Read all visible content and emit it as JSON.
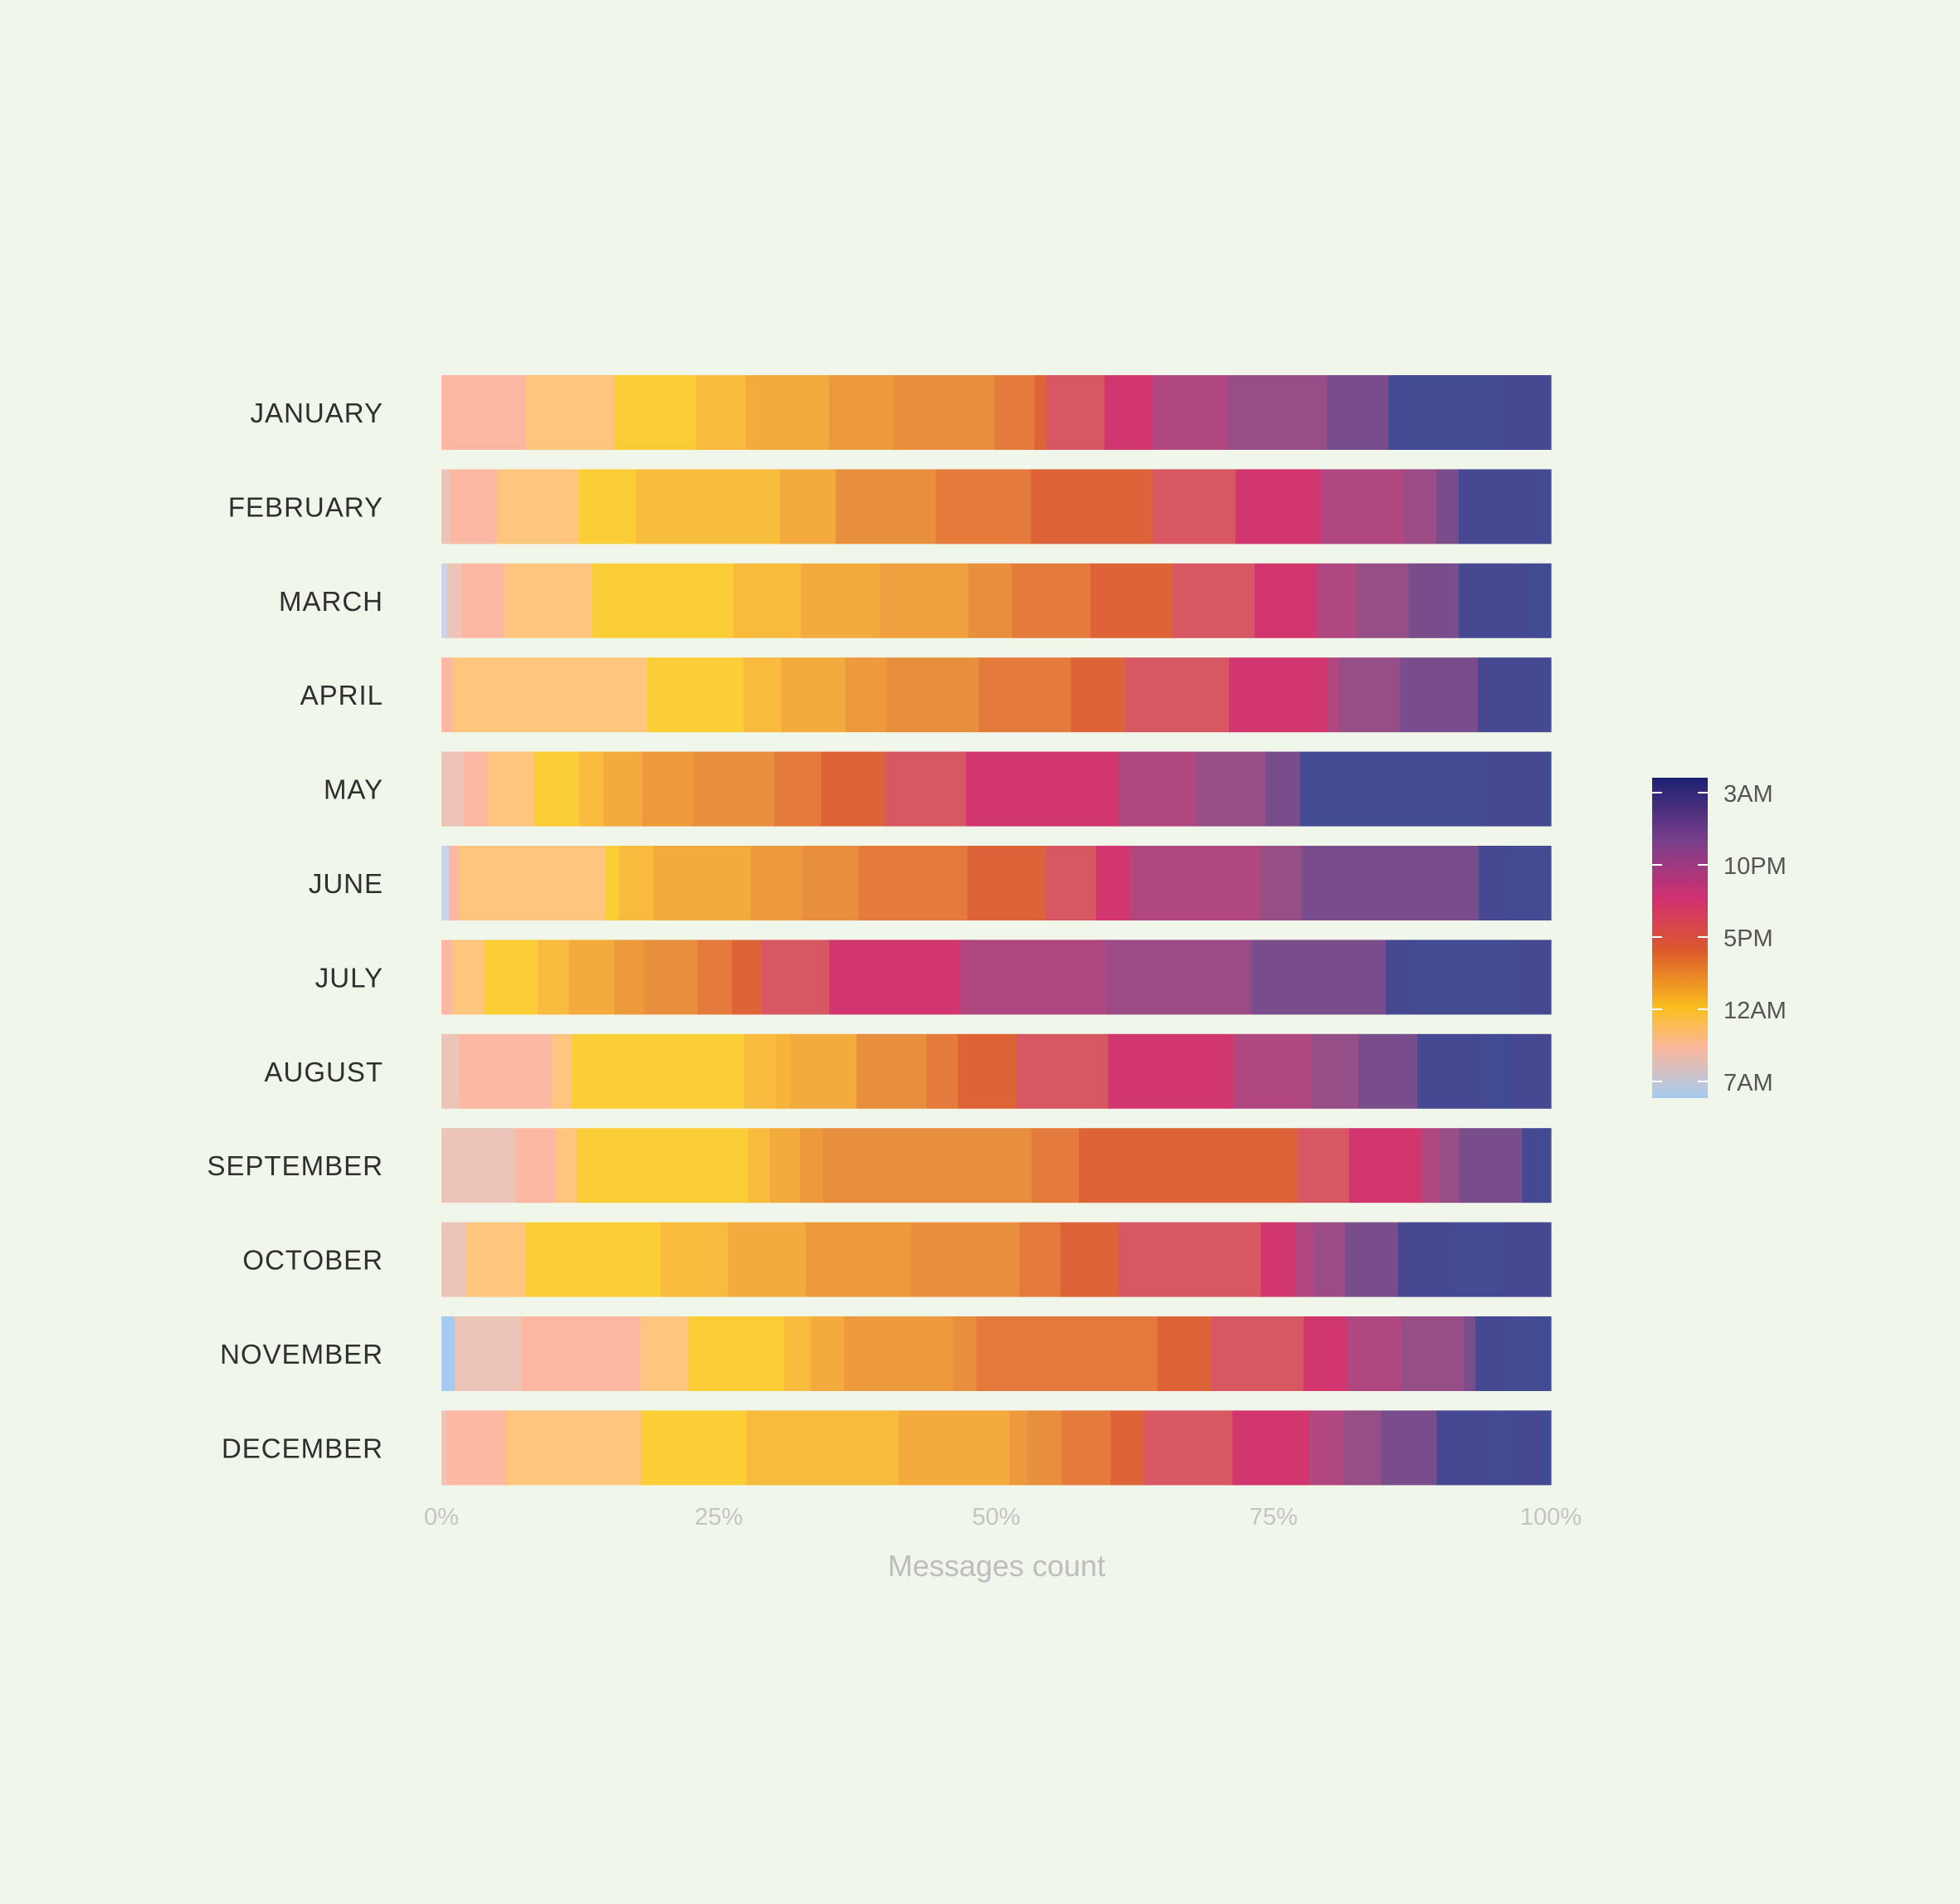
{
  "chart_data": {
    "type": "bar",
    "orientation": "horizontal",
    "stacked": true,
    "normalized": true,
    "categories": [
      "JANUARY",
      "FEBRUARY",
      "MARCH",
      "APRIL",
      "MAY",
      "JUNE",
      "JULY",
      "AUGUST",
      "SEPTEMBER",
      "OCTOBER",
      "NOVEMBER",
      "DECEMBER"
    ],
    "xlabel": "Messages count",
    "xlim": [
      0,
      100
    ],
    "xticks": [
      "0%",
      "25%",
      "50%",
      "75%",
      "100%"
    ],
    "grid": false,
    "colorbar": {
      "ticks": [
        "3AM",
        "10PM",
        "5PM",
        "12AM",
        "7AM"
      ],
      "stops": [
        "#1b2171",
        "#7b3f8c",
        "#d1306f",
        "#dd5a2c",
        "#fbbf1f",
        "#fbb79a",
        "#a6cbf0"
      ]
    },
    "rows": [
      {
        "name": "JANUARY",
        "segments": [
          {
            "v": 7.6,
            "c": "#fcb8a2"
          },
          {
            "v": 8.0,
            "c": "#fdc57d"
          },
          {
            "v": 7.3,
            "c": "#fbcd37"
          },
          {
            "v": 4.5,
            "c": "#f8bb3d"
          },
          {
            "v": 7.5,
            "c": "#f2ab3c"
          },
          {
            "v": 5.8,
            "c": "#ed9a3d"
          },
          {
            "v": 9.1,
            "c": "#e88f3d"
          },
          {
            "v": 3.6,
            "c": "#e47b3c"
          },
          {
            "v": 1.1,
            "c": "#df6339"
          },
          {
            "v": 5.2,
            "c": "#d75763"
          },
          {
            "v": 4.4,
            "c": "#d1366e"
          },
          {
            "v": 6.7,
            "c": "#b14781"
          },
          {
            "v": 8.9,
            "c": "#964e87"
          },
          {
            "v": 5.6,
            "c": "#794d8c"
          },
          {
            "v": 10.1,
            "c": "#434b92"
          },
          {
            "v": 4.5,
            "c": "#464991"
          }
        ]
      },
      {
        "name": "FEBRUARY",
        "segments": [
          {
            "v": 0.8,
            "c": "#ecc4b8"
          },
          {
            "v": 4.2,
            "c": "#fcb8a2"
          },
          {
            "v": 7.4,
            "c": "#fdc57d"
          },
          {
            "v": 5.1,
            "c": "#fbcd37"
          },
          {
            "v": 13.0,
            "c": "#f9bd3d"
          },
          {
            "v": 5.0,
            "c": "#f2ab3c"
          },
          {
            "v": 9.0,
            "c": "#e88f3d"
          },
          {
            "v": 8.6,
            "c": "#e47b3c"
          },
          {
            "v": 10.9,
            "c": "#df6339"
          },
          {
            "v": 7.5,
            "c": "#d75763"
          },
          {
            "v": 7.7,
            "c": "#d1366e"
          },
          {
            "v": 7.5,
            "c": "#b14781"
          },
          {
            "v": 2.9,
            "c": "#9b4b86"
          },
          {
            "v": 2.0,
            "c": "#794d8c"
          },
          {
            "v": 7.4,
            "c": "#464991"
          },
          {
            "v": 0.9,
            "c": "#434b92"
          }
        ]
      },
      {
        "name": "MARCH",
        "segments": [
          {
            "v": 0.5,
            "c": "#c8d4ea"
          },
          {
            "v": 1.3,
            "c": "#ecc4b8"
          },
          {
            "v": 3.9,
            "c": "#fcb8a2"
          },
          {
            "v": 7.9,
            "c": "#fdc57d"
          },
          {
            "v": 12.7,
            "c": "#fbcd37"
          },
          {
            "v": 6.1,
            "c": "#f8bb3d"
          },
          {
            "v": 7.1,
            "c": "#f2ab3c"
          },
          {
            "v": 8.0,
            "c": "#ef9f3d"
          },
          {
            "v": 3.9,
            "c": "#e88f3d"
          },
          {
            "v": 7.1,
            "c": "#e47b3c"
          },
          {
            "v": 7.4,
            "c": "#df6339"
          },
          {
            "v": 7.4,
            "c": "#d75763"
          },
          {
            "v": 5.6,
            "c": "#d1366e"
          },
          {
            "v": 3.6,
            "c": "#b14781"
          },
          {
            "v": 4.7,
            "c": "#964e87"
          },
          {
            "v": 4.5,
            "c": "#794d8c"
          },
          {
            "v": 6.0,
            "c": "#464991"
          },
          {
            "v": 1.7,
            "c": "#434b92"
          },
          {
            "v": 0.6,
            "c": "#3f4c93"
          }
        ]
      },
      {
        "name": "APRIL",
        "segments": [
          {
            "v": 1.0,
            "c": "#fcb8a2"
          },
          {
            "v": 17.6,
            "c": "#fdc57d"
          },
          {
            "v": 8.7,
            "c": "#fbcd37"
          },
          {
            "v": 3.4,
            "c": "#f8bb3d"
          },
          {
            "v": 5.8,
            "c": "#f2ab3c"
          },
          {
            "v": 3.7,
            "c": "#ed9a3d"
          },
          {
            "v": 8.4,
            "c": "#e88f3d"
          },
          {
            "v": 8.3,
            "c": "#e47b3c"
          },
          {
            "v": 4.9,
            "c": "#df6339"
          },
          {
            "v": 9.4,
            "c": "#d75763"
          },
          {
            "v": 8.9,
            "c": "#d1366e"
          },
          {
            "v": 1.1,
            "c": "#b14781"
          },
          {
            "v": 5.5,
            "c": "#964e87"
          },
          {
            "v": 7.0,
            "c": "#794d8c"
          },
          {
            "v": 6.0,
            "c": "#464991"
          },
          {
            "v": 0.6,
            "c": "#434b92"
          }
        ]
      },
      {
        "name": "MAY",
        "segments": [
          {
            "v": 2.0,
            "c": "#ecc4b8"
          },
          {
            "v": 2.2,
            "c": "#fcb8a2"
          },
          {
            "v": 4.2,
            "c": "#fdc57d"
          },
          {
            "v": 4.0,
            "c": "#fbcd37"
          },
          {
            "v": 2.2,
            "c": "#f8bb3d"
          },
          {
            "v": 3.5,
            "c": "#f2ab3c"
          },
          {
            "v": 4.6,
            "c": "#ed9a3d"
          },
          {
            "v": 7.3,
            "c": "#e88f3d"
          },
          {
            "v": 4.2,
            "c": "#e47b3c"
          },
          {
            "v": 5.8,
            "c": "#df6339"
          },
          {
            "v": 7.3,
            "c": "#d75763"
          },
          {
            "v": 13.7,
            "c": "#d1366e"
          },
          {
            "v": 7.1,
            "c": "#b14781"
          },
          {
            "v": 6.2,
            "c": "#964e87"
          },
          {
            "v": 3.1,
            "c": "#794d8c"
          },
          {
            "v": 16.7,
            "c": "#434b92"
          },
          {
            "v": 5.2,
            "c": "#464991"
          },
          {
            "v": 0.7,
            "c": "#3f4c93"
          }
        ]
      },
      {
        "name": "JUNE",
        "segments": [
          {
            "v": 0.7,
            "c": "#c8d4ea"
          },
          {
            "v": 0.9,
            "c": "#fcb8a2"
          },
          {
            "v": 13.2,
            "c": "#fdc57d"
          },
          {
            "v": 1.2,
            "c": "#fbcd37"
          },
          {
            "v": 3.1,
            "c": "#f8bb3d"
          },
          {
            "v": 8.8,
            "c": "#f2ab3c"
          },
          {
            "v": 4.6,
            "c": "#ed9a3d"
          },
          {
            "v": 5.1,
            "c": "#e88f3d"
          },
          {
            "v": 9.8,
            "c": "#e47b3c"
          },
          {
            "v": 7.0,
            "c": "#df6339"
          },
          {
            "v": 4.6,
            "c": "#d75763"
          },
          {
            "v": 3.1,
            "c": "#d1366e"
          },
          {
            "v": 11.8,
            "c": "#b14781"
          },
          {
            "v": 3.7,
            "c": "#964e87"
          },
          {
            "v": 15.9,
            "c": "#794d8c"
          },
          {
            "v": 2.7,
            "c": "#464991"
          },
          {
            "v": 3.8,
            "c": "#434b92"
          }
        ]
      },
      {
        "name": "JULY",
        "segments": [
          {
            "v": 1.0,
            "c": "#fcb8a2"
          },
          {
            "v": 2.9,
            "c": "#fdc57d"
          },
          {
            "v": 4.8,
            "c": "#fbcd37"
          },
          {
            "v": 2.8,
            "c": "#f8bb3d"
          },
          {
            "v": 4.1,
            "c": "#f2ab3c"
          },
          {
            "v": 2.7,
            "c": "#ed9a3d"
          },
          {
            "v": 4.8,
            "c": "#e88f3d"
          },
          {
            "v": 3.1,
            "c": "#e47b3c"
          },
          {
            "v": 2.7,
            "c": "#df6339"
          },
          {
            "v": 6.1,
            "c": "#d75763"
          },
          {
            "v": 11.8,
            "c": "#d1366e"
          },
          {
            "v": 13.2,
            "c": "#b14781"
          },
          {
            "v": 13.1,
            "c": "#9b4b86"
          },
          {
            "v": 12.1,
            "c": "#794d8c"
          },
          {
            "v": 2.5,
            "c": "#464991"
          },
          {
            "v": 9.5,
            "c": "#434b92"
          },
          {
            "v": 2.9,
            "c": "#464991"
          }
        ]
      },
      {
        "name": "AUGUST",
        "segments": [
          {
            "v": 1.6,
            "c": "#ecc4b8"
          },
          {
            "v": 8.3,
            "c": "#fcb8a2"
          },
          {
            "v": 1.8,
            "c": "#fdc57d"
          },
          {
            "v": 15.5,
            "c": "#fbcd37"
          },
          {
            "v": 2.8,
            "c": "#f8bb3d"
          },
          {
            "v": 1.3,
            "c": "#f6b43d"
          },
          {
            "v": 6.0,
            "c": "#f2ab3c"
          },
          {
            "v": 6.3,
            "c": "#e88f3d"
          },
          {
            "v": 2.8,
            "c": "#e47b3c"
          },
          {
            "v": 5.3,
            "c": "#df6339"
          },
          {
            "v": 8.2,
            "c": "#d75763"
          },
          {
            "v": 11.3,
            "c": "#d1366e"
          },
          {
            "v": 7.0,
            "c": "#b14781"
          },
          {
            "v": 4.2,
            "c": "#964e87"
          },
          {
            "v": 5.3,
            "c": "#794d8c"
          },
          {
            "v": 6.0,
            "c": "#464991"
          },
          {
            "v": 1.4,
            "c": "#434b92"
          },
          {
            "v": 0.9,
            "c": "#3f4c93"
          },
          {
            "v": 3.7,
            "c": "#464991"
          }
        ]
      },
      {
        "name": "SEPTEMBER",
        "segments": [
          {
            "v": 6.7,
            "c": "#ecc4b8"
          },
          {
            "v": 3.6,
            "c": "#fcb8a2"
          },
          {
            "v": 2.0,
            "c": "#fdc57d"
          },
          {
            "v": 15.5,
            "c": "#fbcd37"
          },
          {
            "v": 2.0,
            "c": "#f8bb3d"
          },
          {
            "v": 2.7,
            "c": "#f2ab3c"
          },
          {
            "v": 2.1,
            "c": "#ed9a3d"
          },
          {
            "v": 18.9,
            "c": "#e88f3d"
          },
          {
            "v": 4.3,
            "c": "#e47b3c"
          },
          {
            "v": 19.8,
            "c": "#df6339"
          },
          {
            "v": 4.7,
            "c": "#d75763"
          },
          {
            "v": 6.6,
            "c": "#d1366e"
          },
          {
            "v": 1.6,
            "c": "#b14781"
          },
          {
            "v": 1.8,
            "c": "#964e87"
          },
          {
            "v": 5.7,
            "c": "#794d8c"
          },
          {
            "v": 1.1,
            "c": "#464991"
          },
          {
            "v": 0.6,
            "c": "#434b92"
          },
          {
            "v": 0.4,
            "c": "#3f4c93"
          },
          {
            "v": 0.5,
            "c": "#434b92"
          }
        ]
      },
      {
        "name": "OCTOBER",
        "segments": [
          {
            "v": 2.2,
            "c": "#ecc4b8"
          },
          {
            "v": 5.4,
            "c": "#fdc57d"
          },
          {
            "v": 12.2,
            "c": "#fbcd37"
          },
          {
            "v": 6.1,
            "c": "#f8bb3d"
          },
          {
            "v": 7.0,
            "c": "#f2ab3c"
          },
          {
            "v": 9.5,
            "c": "#ed9a3d"
          },
          {
            "v": 9.8,
            "c": "#e88f3d"
          },
          {
            "v": 3.7,
            "c": "#e47b3c"
          },
          {
            "v": 5.3,
            "c": "#df6339"
          },
          {
            "v": 12.8,
            "c": "#d75763"
          },
          {
            "v": 3.1,
            "c": "#d1366e"
          },
          {
            "v": 1.7,
            "c": "#b14781"
          },
          {
            "v": 2.8,
            "c": "#9b4b86"
          },
          {
            "v": 4.8,
            "c": "#794d8c"
          },
          {
            "v": 4.9,
            "c": "#464991"
          },
          {
            "v": 4.4,
            "c": "#434b92"
          },
          {
            "v": 4.5,
            "c": "#464991"
          }
        ]
      },
      {
        "name": "NOVEMBER",
        "segments": [
          {
            "v": 1.2,
            "c": "#a6cbf0"
          },
          {
            "v": 6.0,
            "c": "#ecc4b8"
          },
          {
            "v": 10.7,
            "c": "#fcb8a2"
          },
          {
            "v": 4.4,
            "c": "#fdc57d"
          },
          {
            "v": 8.6,
            "c": "#fbcd37"
          },
          {
            "v": 2.4,
            "c": "#f8bb3d"
          },
          {
            "v": 3.0,
            "c": "#f2ab3c"
          },
          {
            "v": 9.8,
            "c": "#ed9a3d"
          },
          {
            "v": 2.1,
            "c": "#e88f3d"
          },
          {
            "v": 16.3,
            "c": "#e47b3c"
          },
          {
            "v": 4.9,
            "c": "#df6339"
          },
          {
            "v": 8.3,
            "c": "#d75763"
          },
          {
            "v": 3.9,
            "c": "#d1366e"
          },
          {
            "v": 4.9,
            "c": "#b14781"
          },
          {
            "v": 5.7,
            "c": "#964e87"
          },
          {
            "v": 1.0,
            "c": "#794d8c"
          },
          {
            "v": 2.9,
            "c": "#464991"
          },
          {
            "v": 2.9,
            "c": "#434b92"
          },
          {
            "v": 1.0,
            "c": "#3f4c93"
          }
        ]
      },
      {
        "name": "DECEMBER",
        "segments": [
          {
            "v": 0.5,
            "c": "#ecc4b8"
          },
          {
            "v": 5.3,
            "c": "#fcb8a2"
          },
          {
            "v": 12.2,
            "c": "#fdc57d"
          },
          {
            "v": 9.5,
            "c": "#fbcd37"
          },
          {
            "v": 13.7,
            "c": "#f8bb3d"
          },
          {
            "v": 10.0,
            "c": "#f2ab3c"
          },
          {
            "v": 1.6,
            "c": "#ed9a3d"
          },
          {
            "v": 3.1,
            "c": "#e88f3d"
          },
          {
            "v": 4.4,
            "c": "#e47b3c"
          },
          {
            "v": 3.0,
            "c": "#df6339"
          },
          {
            "v": 8.0,
            "c": "#d75763"
          },
          {
            "v": 6.9,
            "c": "#d1366e"
          },
          {
            "v": 3.1,
            "c": "#b14781"
          },
          {
            "v": 3.4,
            "c": "#964e87"
          },
          {
            "v": 5.0,
            "c": "#794d8c"
          },
          {
            "v": 5.2,
            "c": "#464991"
          },
          {
            "v": 1.2,
            "c": "#434b92"
          },
          {
            "v": 3.0,
            "c": "#464991"
          },
          {
            "v": 0.9,
            "c": "#3f4c93"
          }
        ]
      }
    ]
  }
}
